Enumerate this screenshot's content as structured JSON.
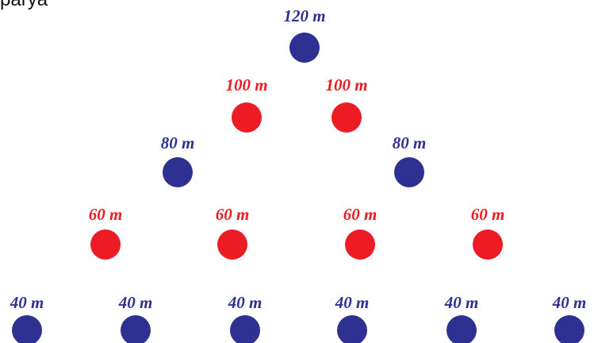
{
  "top_left_text": "parya",
  "colors": {
    "blue": "#2e3192",
    "red": "#ed1c24"
  },
  "rows": [
    {
      "nodes": [
        {
          "label": "120 m",
          "color": "blue"
        }
      ]
    },
    {
      "nodes": [
        {
          "label": "100 m",
          "color": "red"
        },
        {
          "label": "100 m",
          "color": "red"
        }
      ]
    },
    {
      "nodes": [
        {
          "label": "80 m",
          "color": "blue"
        },
        {
          "label": "80 m",
          "color": "blue"
        }
      ]
    },
    {
      "nodes": [
        {
          "label": "60 m",
          "color": "red"
        },
        {
          "label": "60 m",
          "color": "red"
        },
        {
          "label": "60 m",
          "color": "red"
        },
        {
          "label": "60 m",
          "color": "red"
        }
      ]
    },
    {
      "nodes": [
        {
          "label": "40 m",
          "color": "blue"
        },
        {
          "label": "40 m",
          "color": "blue"
        },
        {
          "label": "40 m",
          "color": "blue"
        },
        {
          "label": "40 m",
          "color": "blue"
        },
        {
          "label": "40 m",
          "color": "blue"
        },
        {
          "label": "40 m",
          "color": "blue"
        }
      ]
    }
  ]
}
